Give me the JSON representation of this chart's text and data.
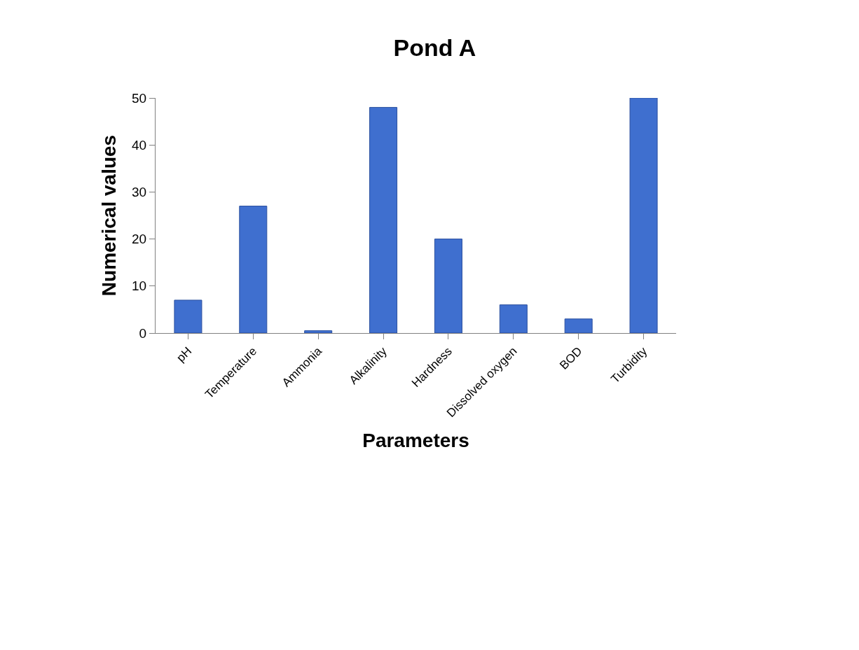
{
  "chart_data": {
    "type": "bar",
    "title": "Pond A",
    "xlabel": "Parameters",
    "ylabel": "Numerical values",
    "categories": [
      "pH",
      "Temperature",
      "Ammonia",
      "Alkalinity",
      "Hardness",
      "Dissolved oxygen",
      "BOD",
      "Turbidity"
    ],
    "values": [
      7,
      27,
      0.5,
      48,
      20,
      6,
      3,
      50
    ],
    "color": "#3f6fcf",
    "ylim": [
      0,
      50
    ],
    "yticks": [
      0,
      10,
      20,
      30,
      40,
      50
    ],
    "grid": false
  }
}
